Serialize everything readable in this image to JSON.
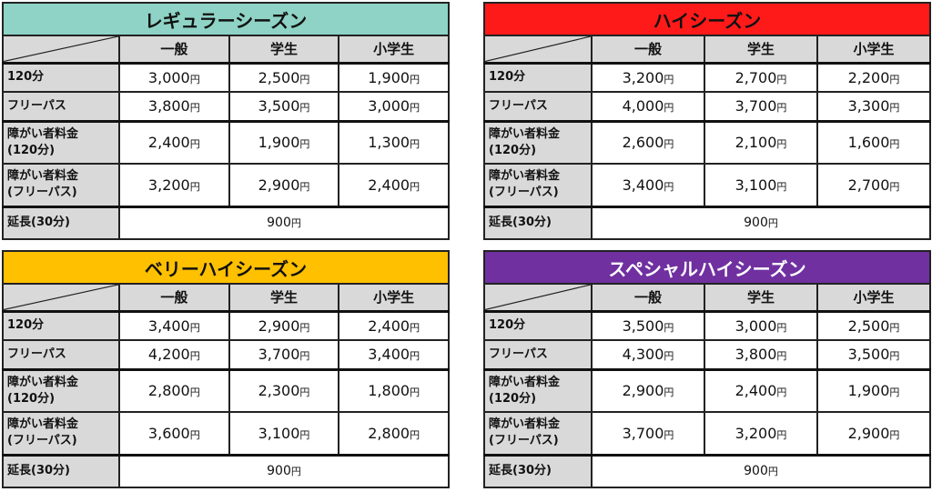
{
  "header": {
    "cols": [
      "一般",
      "学生",
      "小学生"
    ]
  },
  "rows": [
    "120分",
    "フリーパス",
    "障がい者料金\n(120分)",
    "障がい者料金\n(フリーパス)",
    "延長(30分)"
  ],
  "unit": "円",
  "panels": [
    {
      "title": "レギュラーシーズン",
      "color": "#8ed3c5",
      "prices": [
        [
          "3,000",
          "2,500",
          "1,900"
        ],
        [
          "3,800",
          "3,500",
          "3,000"
        ],
        [
          "2,400",
          "1,900",
          "1,300"
        ],
        [
          "3,200",
          "2,900",
          "2,400"
        ]
      ],
      "extension": "900"
    },
    {
      "title": "ハイシーズン",
      "color": "#ff1a1a",
      "prices": [
        [
          "3,200",
          "2,700",
          "2,200"
        ],
        [
          "4,000",
          "3,700",
          "3,300"
        ],
        [
          "2,600",
          "2,100",
          "1,600"
        ],
        [
          "3,400",
          "3,100",
          "2,700"
        ]
      ],
      "extension": "900"
    },
    {
      "title": "ベリーハイシーズン",
      "color": "#ffc000",
      "prices": [
        [
          "3,400",
          "2,900",
          "2,400"
        ],
        [
          "4,200",
          "3,700",
          "3,400"
        ],
        [
          "2,800",
          "2,300",
          "1,800"
        ],
        [
          "3,600",
          "3,100",
          "2,800"
        ]
      ],
      "extension": "900"
    },
    {
      "title": "スペシャルハイシーズン",
      "color": "#7030a0",
      "prices": [
        [
          "3,500",
          "3,000",
          "2,500"
        ],
        [
          "4,300",
          "3,800",
          "3,500"
        ],
        [
          "2,900",
          "2,400",
          "1,900"
        ],
        [
          "3,700",
          "3,200",
          "2,900"
        ]
      ],
      "extension": "900"
    }
  ]
}
